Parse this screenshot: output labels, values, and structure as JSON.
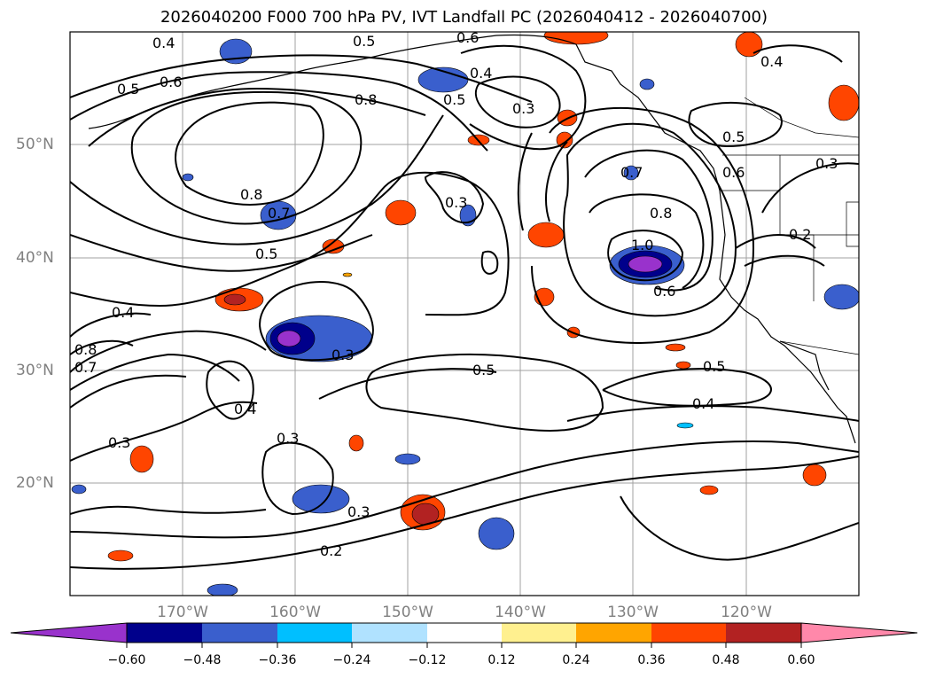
{
  "title": "2026040200 F000 700 hPa PV, IVT Landfall PC (2026040412 - 2026040700)",
  "map": {
    "projection": "PlateCarree",
    "lon_range": [
      180,
      110
    ],
    "lat_range": [
      10,
      60
    ],
    "lat_labels": [
      "50°N",
      "40°N",
      "30°N",
      "20°N"
    ],
    "lon_labels": [
      "170°W",
      "160°W",
      "150°W",
      "140°W",
      "130°W",
      "120°W"
    ],
    "contour_labels": [
      "0.4",
      "0.5",
      "0.6",
      "0.8",
      "0.4",
      "0.3",
      "0.5",
      "0.6",
      "0.5",
      "0.3",
      "0.8",
      "0.7",
      "0.5",
      "0.3",
      "0.8",
      "0.7",
      "1.0",
      "0.6",
      "0.2",
      "0.4",
      "0.5",
      "0.6",
      "0.7",
      "0.8",
      "0.3",
      "0.4",
      "0.3",
      "0.4",
      "0.5",
      "0.5",
      "0.4",
      "0.3",
      "0.3",
      "0.2"
    ]
  },
  "colorbar": {
    "ticks": [
      "−0.60",
      "−0.48",
      "−0.36",
      "−0.24",
      "−0.12",
      "0.12",
      "0.24",
      "0.36",
      "0.48",
      "0.60"
    ],
    "colors": [
      "#9932cc",
      "#00008b",
      "#3a5fcd",
      "#00bfff",
      "#b0e2ff",
      "#ffffff",
      "#fff08f",
      "#ffa500",
      "#ff4500",
      "#b22222",
      "#ff88aa"
    ]
  }
}
